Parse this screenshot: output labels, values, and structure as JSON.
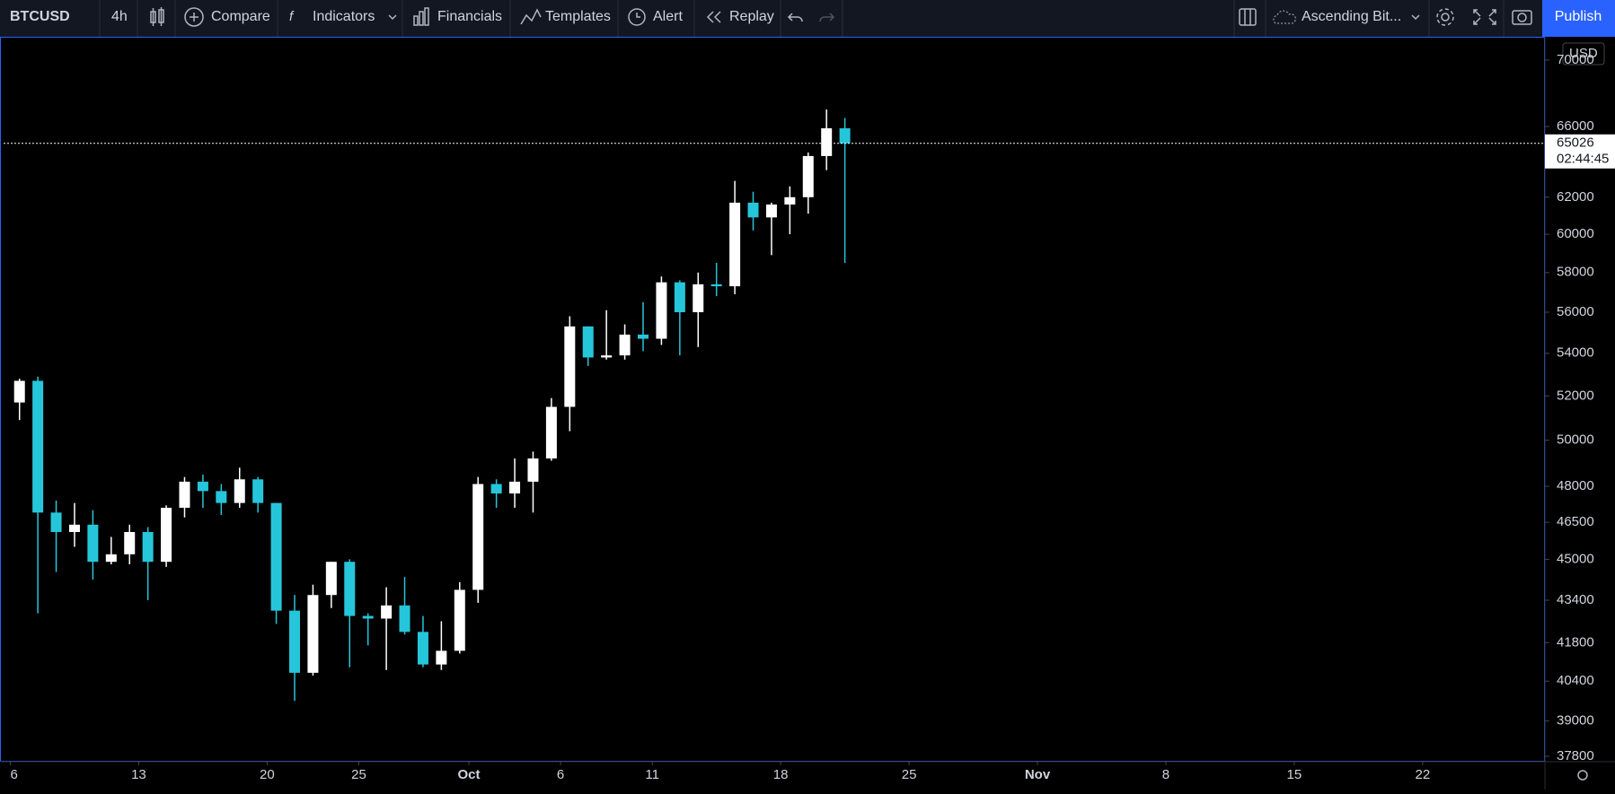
{
  "toolbar": {
    "symbol": "BTCUSD",
    "interval": "4h",
    "items": [
      "Compare",
      "Indicators",
      "Financials",
      "Templates",
      "Alert",
      "Replay"
    ],
    "layout": "Ascending Bit...",
    "publish": "Publish"
  },
  "chart_data": {
    "type": "candlestick",
    "currency": "USD",
    "log_scale": true,
    "up_color": "#ffffff",
    "down_color": "#26c6da",
    "x": [
      "Sep 6",
      "Sep 7",
      "Sep 8",
      "Sep 9",
      "Sep 10",
      "Sep 11",
      "Sep 12",
      "Sep 13",
      "Sep 14",
      "Sep 15",
      "Sep 16",
      "Sep 17",
      "Sep 18",
      "Sep 19",
      "Sep 20",
      "Sep 21",
      "Sep 22",
      "Sep 23",
      "Sep 24",
      "Sep 25",
      "Sep 26",
      "Sep 27",
      "Sep 28",
      "Sep 29",
      "Sep 30",
      "Oct 1",
      "Oct 2",
      "Oct 3",
      "Oct 4",
      "Oct 5",
      "Oct 6",
      "Oct 7",
      "Oct 8",
      "Oct 9",
      "Oct 10",
      "Oct 11",
      "Oct 12",
      "Oct 13",
      "Oct 14",
      "Oct 15",
      "Oct 16",
      "Oct 17",
      "Oct 18",
      "Oct 19",
      "Oct 20",
      "Oct 21"
    ],
    "open": [
      51700,
      52700,
      46900,
      46100,
      46400,
      44900,
      45200,
      46100,
      44900,
      47100,
      48200,
      47800,
      47300,
      48300,
      47300,
      43000,
      40700,
      43600,
      44900,
      42800,
      42700,
      43200,
      42200,
      41000,
      41500,
      43800,
      48100,
      47700,
      48200,
      49200,
      51500,
      55300,
      53800,
      53900,
      54900,
      54700,
      57500,
      56000,
      57400,
      57300,
      61700,
      60900,
      61600,
      62000,
      64300,
      65900
    ],
    "high": [
      52800,
      52900,
      47400,
      47300,
      47000,
      45900,
      46400,
      46300,
      47200,
      48400,
      48500,
      48100,
      48800,
      48400,
      47300,
      43600,
      44000,
      44900,
      45000,
      42900,
      43900,
      44300,
      42800,
      42600,
      44100,
      48400,
      48300,
      49200,
      49500,
      51900,
      55800,
      55300,
      56100,
      55400,
      56500,
      57800,
      57600,
      58000,
      58500,
      62900,
      62300,
      61700,
      62600,
      64500,
      67000,
      66500
    ],
    "low": [
      50900,
      42900,
      44500,
      45500,
      44200,
      44800,
      44800,
      43400,
      44700,
      46700,
      47100,
      46800,
      47100,
      46900,
      42500,
      39700,
      40600,
      43100,
      40900,
      41700,
      40800,
      42100,
      40900,
      40800,
      41400,
      43300,
      47100,
      47100,
      46900,
      49100,
      50400,
      53400,
      53700,
      53700,
      54100,
      54400,
      53900,
      54300,
      56800,
      56900,
      60200,
      58900,
      60000,
      61100,
      63500,
      58500
    ],
    "close": [
      52700,
      46900,
      46100,
      46400,
      44900,
      45200,
      46100,
      44900,
      47100,
      48200,
      47800,
      47300,
      48300,
      47300,
      43000,
      40700,
      43600,
      44900,
      42800,
      42700,
      43200,
      42200,
      41000,
      41500,
      43800,
      48100,
      47700,
      48200,
      49200,
      51500,
      55300,
      53800,
      53900,
      54900,
      54700,
      57500,
      56000,
      57400,
      57300,
      61700,
      60900,
      61600,
      62000,
      64300,
      65900,
      65026
    ],
    "last_price": 65026,
    "countdown": "02:44:45",
    "ylim": [
      37620,
      71400
    ],
    "yticks": [
      37800,
      39000,
      40400,
      41800,
      43400,
      45000,
      46500,
      48000,
      50000,
      52000,
      54000,
      56000,
      58000,
      60000,
      62000,
      66000,
      70000
    ],
    "xticks": [
      {
        "value": "Sep 6",
        "label": "6"
      },
      {
        "value": "Sep 13",
        "label": "13"
      },
      {
        "value": "Sep 20",
        "label": "20"
      },
      {
        "value": "Sep 25",
        "label": "25"
      },
      {
        "value": "Oct 1",
        "label": "Oct"
      },
      {
        "value": "Oct 6",
        "label": "6"
      },
      {
        "value": "Oct 11",
        "label": "11"
      },
      {
        "value": "Oct 18",
        "label": "18"
      },
      {
        "value": "Oct 25",
        "label": "25"
      },
      {
        "value": "Nov 1",
        "label": "Nov"
      },
      {
        "value": "Nov 8",
        "label": "8"
      },
      {
        "value": "Nov 15",
        "label": "15"
      },
      {
        "value": "Nov 22",
        "label": "22"
      }
    ]
  }
}
